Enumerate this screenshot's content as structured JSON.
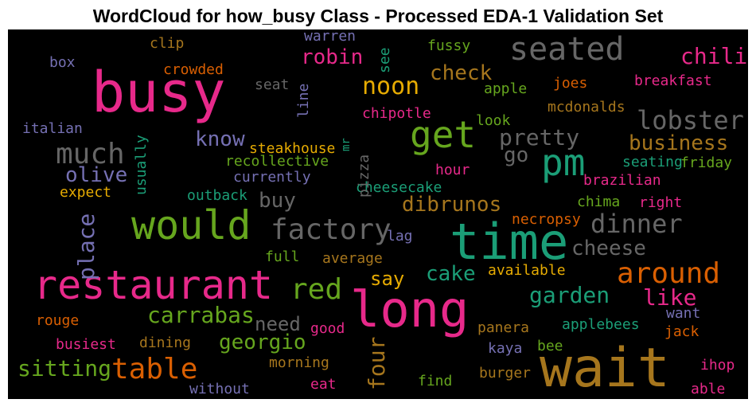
{
  "chart_data": {
    "type": "wordcloud",
    "title": "WordCloud for how_busy Class - Processed EDA-1 Validation Set",
    "words": [
      {
        "text": "busy",
        "color": "#e7298a"
      },
      {
        "text": "wait",
        "color": "#a6761d"
      },
      {
        "text": "time",
        "color": "#1b9e77"
      },
      {
        "text": "long",
        "color": "#e7298a"
      },
      {
        "text": "restaurant",
        "color": "#e7298a"
      },
      {
        "text": "would",
        "color": "#66a61e"
      },
      {
        "text": "seated",
        "color": "#666666"
      },
      {
        "text": "pm",
        "color": "#1b9e77"
      },
      {
        "text": "get",
        "color": "#66a61e"
      },
      {
        "text": "much",
        "color": "#666666"
      },
      {
        "text": "factory",
        "color": "#666666"
      },
      {
        "text": "around",
        "color": "#d95f02"
      },
      {
        "text": "table",
        "color": "#d95f02"
      },
      {
        "text": "red",
        "color": "#66a61e"
      },
      {
        "text": "lobster",
        "color": "#666666"
      },
      {
        "text": "dinner",
        "color": "#666666"
      },
      {
        "text": "noon",
        "color": "#e6ab02"
      },
      {
        "text": "chili",
        "color": "#e7298a"
      },
      {
        "text": "pretty",
        "color": "#666666"
      },
      {
        "text": "check",
        "color": "#a6761d"
      },
      {
        "text": "robin",
        "color": "#e7298a"
      },
      {
        "text": "know",
        "color": "#7570b3"
      },
      {
        "text": "olive",
        "color": "#7570b3"
      },
      {
        "text": "business",
        "color": "#a6761d"
      },
      {
        "text": "place",
        "color": "#7570b3"
      },
      {
        "text": "carrabas",
        "color": "#66a61e"
      },
      {
        "text": "georgio",
        "color": "#66a61e"
      },
      {
        "text": "sitting",
        "color": "#66a61e"
      },
      {
        "text": "four",
        "color": "#a6761d"
      },
      {
        "text": "garden",
        "color": "#1b9e77"
      },
      {
        "text": "like",
        "color": "#e7298a"
      },
      {
        "text": "cheese",
        "color": "#666666"
      },
      {
        "text": "cake",
        "color": "#1b9e77"
      },
      {
        "text": "say",
        "color": "#e6ab02"
      },
      {
        "text": "dibrunos",
        "color": "#a6761d"
      },
      {
        "text": "buy",
        "color": "#666666"
      },
      {
        "text": "go",
        "color": "#666666"
      },
      {
        "text": "need",
        "color": "#666666"
      },
      {
        "text": "steakhouse",
        "color": "#e6ab02"
      },
      {
        "text": "chipotle",
        "color": "#e7298a"
      },
      {
        "text": "recollective",
        "color": "#66a61e"
      },
      {
        "text": "currently",
        "color": "#7570b3"
      },
      {
        "text": "cheesecake",
        "color": "#1b9e77"
      },
      {
        "text": "outback",
        "color": "#1b9e77"
      },
      {
        "text": "expect",
        "color": "#e6ab02"
      },
      {
        "text": "italian",
        "color": "#7570b3"
      },
      {
        "text": "usually",
        "color": "#1b9e77"
      },
      {
        "text": "crowded",
        "color": "#d95f02"
      },
      {
        "text": "clip",
        "color": "#a6761d"
      },
      {
        "text": "box",
        "color": "#7570b3"
      },
      {
        "text": "warren",
        "color": "#7570b3"
      },
      {
        "text": "fussy",
        "color": "#66a61e"
      },
      {
        "text": "see",
        "color": "#1b9e77"
      },
      {
        "text": "seat",
        "color": "#666666"
      },
      {
        "text": "line",
        "color": "#7570b3"
      },
      {
        "text": "apple",
        "color": "#66a61e"
      },
      {
        "text": "joes",
        "color": "#d95f02"
      },
      {
        "text": "breakfast",
        "color": "#e7298a"
      },
      {
        "text": "mcdonalds",
        "color": "#a6761d"
      },
      {
        "text": "look",
        "color": "#66a61e"
      },
      {
        "text": "pizza",
        "color": "#666666"
      },
      {
        "text": "mr",
        "color": "#1b9e77"
      },
      {
        "text": "hour",
        "color": "#e7298a"
      },
      {
        "text": "seating",
        "color": "#1b9e77"
      },
      {
        "text": "friday",
        "color": "#66a61e"
      },
      {
        "text": "brazilian",
        "color": "#e7298a"
      },
      {
        "text": "chima",
        "color": "#66a61e"
      },
      {
        "text": "right",
        "color": "#e7298a"
      },
      {
        "text": "necropsy",
        "color": "#d95f02"
      },
      {
        "text": "lag",
        "color": "#7570b3"
      },
      {
        "text": "full",
        "color": "#66a61e"
      },
      {
        "text": "average",
        "color": "#a6761d"
      },
      {
        "text": "available",
        "color": "#e6ab02"
      },
      {
        "text": "want",
        "color": "#7570b3"
      },
      {
        "text": "applebees",
        "color": "#1b9e77"
      },
      {
        "text": "jack",
        "color": "#d95f02"
      },
      {
        "text": "panera",
        "color": "#a6761d"
      },
      {
        "text": "good",
        "color": "#e7298a"
      },
      {
        "text": "rouge",
        "color": "#d95f02"
      },
      {
        "text": "busiest",
        "color": "#e7298a"
      },
      {
        "text": "dining",
        "color": "#a6761d"
      },
      {
        "text": "kaya",
        "color": "#7570b3"
      },
      {
        "text": "bee",
        "color": "#66a61e"
      },
      {
        "text": "morning",
        "color": "#a6761d"
      },
      {
        "text": "ihop",
        "color": "#e7298a"
      },
      {
        "text": "find",
        "color": "#66a61e"
      },
      {
        "text": "burger",
        "color": "#a6761d"
      },
      {
        "text": "eat",
        "color": "#e7298a"
      },
      {
        "text": "without",
        "color": "#7570b3"
      },
      {
        "text": "able",
        "color": "#e7298a"
      }
    ]
  }
}
